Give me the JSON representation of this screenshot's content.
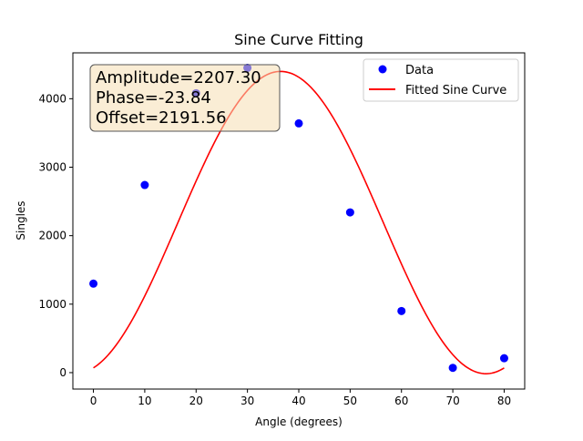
{
  "chart_data": {
    "type": "scatter",
    "title": "Sine Curve Fitting",
    "xlabel": "Angle (degrees)",
    "ylabel": "Singles",
    "xlim": [
      -4,
      84
    ],
    "ylim": [
      -240,
      4670
    ],
    "x_ticks": [
      "0",
      "10",
      "20",
      "30",
      "40",
      "50",
      "60",
      "70",
      "80"
    ],
    "x_tick_values": [
      0,
      10,
      20,
      30,
      40,
      50,
      60,
      70,
      80
    ],
    "y_ticks": [
      "0",
      "1000",
      "2000",
      "3000",
      "4000"
    ],
    "y_tick_values": [
      0,
      1000,
      2000,
      3000,
      4000
    ],
    "grid": false,
    "legend_position": "top-right",
    "series": [
      {
        "name": "Data",
        "kind": "scatter",
        "color": "#0000ff",
        "x": [
          0,
          10,
          20,
          30,
          40,
          50,
          60,
          70,
          80
        ],
        "y": [
          1300,
          2740,
          4080,
          4450,
          3640,
          2340,
          900,
          70,
          210
        ]
      },
      {
        "name": "Fitted Sine Curve",
        "kind": "line",
        "color": "#ff0000",
        "model": "Offset + Amplitude * sin(Angle * pi/40 - Phase)",
        "amplitude": 2207.3,
        "phase": -23.84,
        "offset": 2191.56,
        "x_range": [
          0,
          80
        ]
      }
    ],
    "annotation": {
      "lines": [
        "Amplitude=2207.30",
        "Phase=-23.84",
        "Offset=2191.56"
      ],
      "background": "#f5deb3"
    }
  }
}
